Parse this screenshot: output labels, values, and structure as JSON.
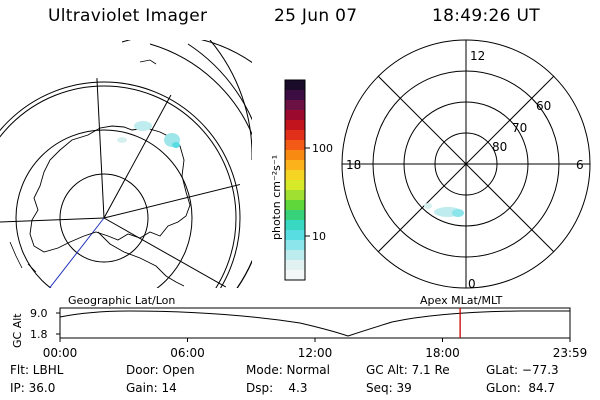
{
  "header": {
    "title": "Ultraviolet Imager",
    "date": "25 Jun 07",
    "time": "18:49:26 UT"
  },
  "colorbar": {
    "unit_label": "photon cm⁻²s⁻¹",
    "ticks": [
      "100",
      "10"
    ],
    "colors": [
      "#1a0b2b",
      "#3c0d42",
      "#6c1144",
      "#9b0a2e",
      "#c2141c",
      "#e0301a",
      "#f25a16",
      "#f88a12",
      "#fcb21a",
      "#f5d424",
      "#d6ea2a",
      "#9fe030",
      "#5fd63a",
      "#37d27a",
      "#39d8c2",
      "#58dde2",
      "#8ce5ea",
      "#bcecee",
      "#e2f2f2",
      "#f4f7f7"
    ]
  },
  "left_panel": {
    "caption": "Geographic Lat/Lon"
  },
  "right_panel": {
    "caption": "Apex MLat/MLT",
    "mlt_labels": {
      "top": "12",
      "left": "18",
      "right": "6",
      "bottom": "0"
    },
    "lat_labels": [
      "60",
      "70",
      "80"
    ]
  },
  "altitude_strip": {
    "ylabel": "GC Alt",
    "ymax_label": "9.0",
    "ymin_label": "1.8",
    "time_ticks": [
      "00:00",
      "06:00",
      "12:00",
      "18:00",
      "23:59"
    ],
    "marker_time": "18:49",
    "marker_color": "#cc0000"
  },
  "footer": {
    "row1": [
      "Flt: LBHL",
      "Door: Open",
      "Mode: Normal",
      "GC Alt: 7.1 Re",
      "GLat: −77.3"
    ],
    "row2": [
      "IP: 36.0",
      "Gain: 14",
      "Dsp:    4.3",
      "Seq: 39",
      "GLon:  84.7"
    ]
  }
}
